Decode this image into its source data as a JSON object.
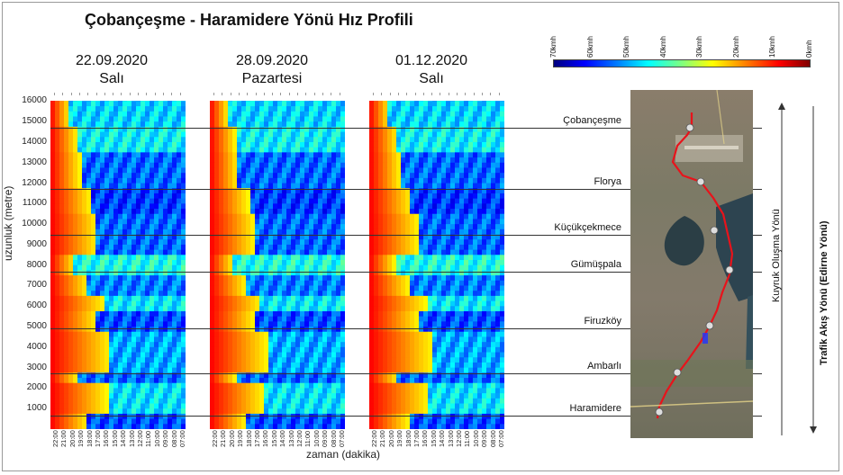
{
  "chart_data": {
    "type": "heatmap",
    "title": "Çobançeşme  - Haramidere  Yönü Hız Profili",
    "ylabel": "uzunluk (metre)",
    "xlabel": "zaman  (dakika)",
    "ylim": [
      0,
      16500
    ],
    "y_ticks": [
      "1000",
      "2000",
      "3000",
      "4000",
      "5000",
      "6000",
      "7000",
      "8000",
      "9000",
      "10000",
      "11000",
      "12000",
      "13000",
      "14000",
      "15000",
      "16000"
    ],
    "x_tick_labels": [
      "22:00",
      "21:00",
      "20:00",
      "19:00",
      "18:00",
      "17:00",
      "16:00",
      "15:00",
      "14:00",
      "13:00",
      "12:00",
      "11:00",
      "10:00",
      "09:00",
      "08:00",
      "07:00"
    ],
    "panels": [
      {
        "date": "22.09.2020",
        "day": "Salı"
      },
      {
        "date": "28.09.2020",
        "day": "Pazartesi"
      },
      {
        "date": "01.12.2020",
        "day": "Salı"
      }
    ],
    "colorbar": {
      "labels": [
        "70kmh",
        "60kmh",
        "50kmh",
        "40kmh",
        "30kmh",
        "20kmh",
        "10kmh",
        "0kmh"
      ],
      "colors": [
        "#00007f",
        "#0000ff",
        "#007fff",
        "#00ffff",
        "#7fff7f",
        "#ffff00",
        "#ff7f00",
        "#ff0000",
        "#7f0000"
      ]
    },
    "locations": [
      {
        "name": "Çobançeşme",
        "y": 14700
      },
      {
        "name": "Florya",
        "y": 11700
      },
      {
        "name": "Küçükçekmece",
        "y": 9500
      },
      {
        "name": "Gümüşpala",
        "y": 7700
      },
      {
        "name": "Firuzköy",
        "y": 4900
      },
      {
        "name": "Ambarlı",
        "y": 2700
      },
      {
        "name": "Haramidere",
        "y": 650
      }
    ]
  },
  "side_labels": {
    "tail_direction": "Kuyruk Oluşma Yönü",
    "traffic_direction": "Trafik Akış Yönü (Edirne Yönü)"
  }
}
